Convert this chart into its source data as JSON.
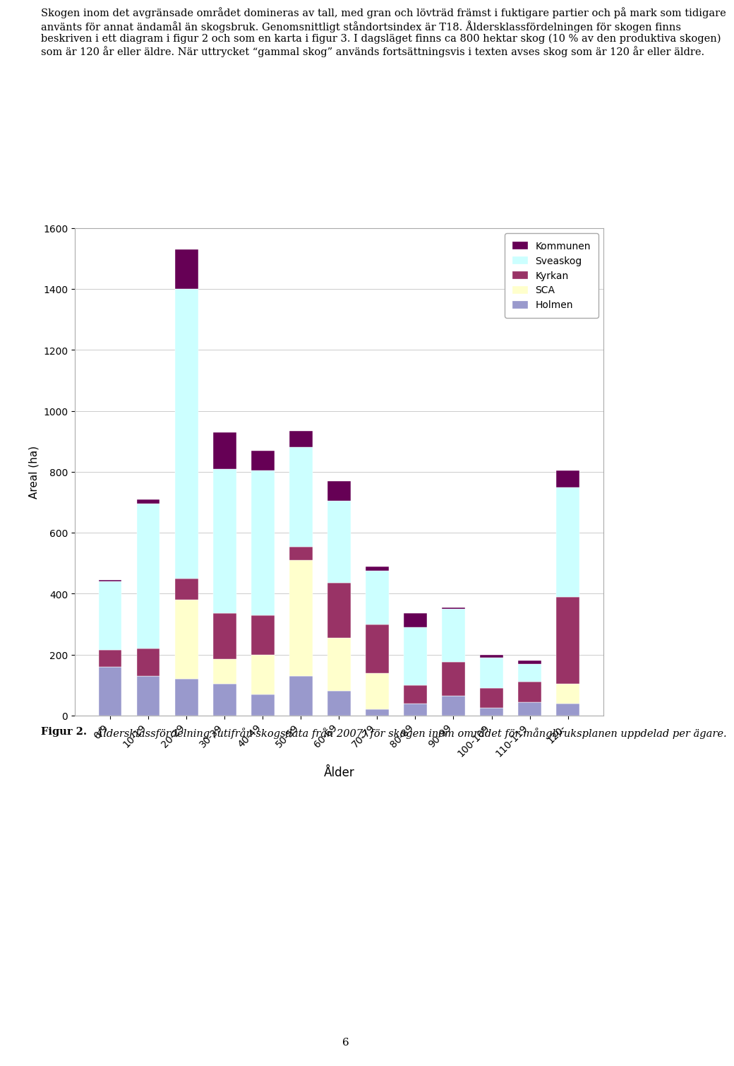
{
  "categories": [
    "0-9",
    "10-19",
    "20-29",
    "30-39",
    "40-49",
    "50-59",
    "60-69",
    "70-79",
    "80-89",
    "90-99",
    "100-109",
    "110-119",
    "120-"
  ],
  "series_order": [
    "Holmen",
    "SCA",
    "Kyrkan",
    "Sveaskog",
    "Kommunen"
  ],
  "legend_order": [
    "Kommunen",
    "Sveaskog",
    "Kyrkan",
    "SCA",
    "Holmen"
  ],
  "values": {
    "Holmen": [
      160,
      130,
      120,
      105,
      70,
      130,
      80,
      20,
      40,
      65,
      25,
      45,
      40
    ],
    "SCA": [
      0,
      0,
      260,
      80,
      130,
      380,
      175,
      120,
      0,
      0,
      0,
      0,
      65
    ],
    "Kyrkan": [
      55,
      90,
      70,
      150,
      130,
      45,
      180,
      160,
      60,
      110,
      65,
      65,
      285
    ],
    "Sveaskog": [
      225,
      475,
      950,
      475,
      475,
      325,
      270,
      175,
      190,
      175,
      100,
      60,
      360
    ],
    "Kommunen": [
      5,
      15,
      130,
      120,
      65,
      55,
      65,
      15,
      45,
      5,
      10,
      10,
      55
    ]
  },
  "colors": {
    "Holmen": "#9999cc",
    "SCA": "#ffffcc",
    "Kyrkan": "#993366",
    "Sveaskog": "#ccffff",
    "Kommunen": "#660055"
  },
  "ylabel": "Areal (ha)",
  "xlabel": "Ålder",
  "ylim": [
    0,
    1600
  ],
  "yticks": [
    0,
    200,
    400,
    600,
    800,
    1000,
    1200,
    1400,
    1600
  ],
  "bar_width": 0.6,
  "text_above": "Skogen inom det avgränsade området domineras av tall, med gran och lövträd främst i fuktigare partier och på mark som tidigare använts för annat ändamål än skogsbruk. Genomsnittligt ståndortsindex är T18. Åldersklassfördelningen för skogen finns beskriven i ett diagram i figur 2 och som en karta i figur 3. I dagsläget finns ca 800 hektar skog (10 % av den produktiva skogen) som är 120 år eller äldre. När uttrycket “gammal skog” används fortsättningsvis i texten avses skog som är 120 år eller äldre.",
  "caption_bold": "Figur 2.",
  "caption_italic": " Åldersklassfördelning (utifrån skogsdata från 2007) för skogen inom området för mångbruksplanen uppdelad per ägare.",
  "page_number": "6"
}
